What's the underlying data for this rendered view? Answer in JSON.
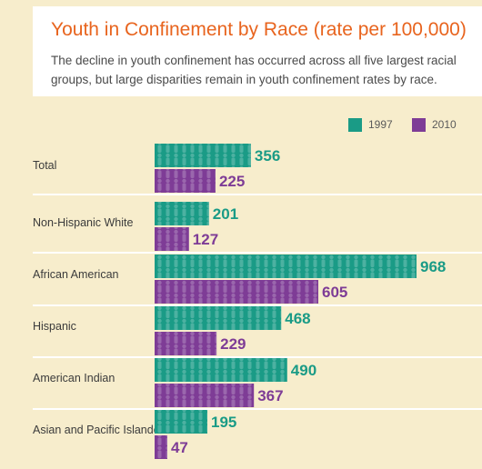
{
  "header": {
    "title": "Youth in Confinement by Race (rate per 100,000)",
    "subtitle": "The decline in youth confinement has occurred across all five largest racial groups, but large disparities remain in youth confinement rates by race."
  },
  "colors": {
    "series_1997": "#1a9b86",
    "series_2010": "#7e3c96",
    "title": "#e8641e",
    "background": "#f7edcc"
  },
  "chart_data": {
    "type": "bar",
    "orientation": "horizontal",
    "categories": [
      "Total",
      "Non-Hispanic White",
      "African American",
      "Hispanic",
      "American Indian",
      "Asian and Pacific Islander"
    ],
    "series": [
      {
        "name": "1997",
        "values": [
          356,
          201,
          968,
          468,
          490,
          195
        ]
      },
      {
        "name": "2010",
        "values": [
          225,
          127,
          605,
          229,
          367,
          47
        ]
      }
    ],
    "title": "Youth in Confinement by Race (rate per 100,000)",
    "legend_position": "top-right",
    "xlim": [
      0,
      1000
    ],
    "grid": false
  }
}
